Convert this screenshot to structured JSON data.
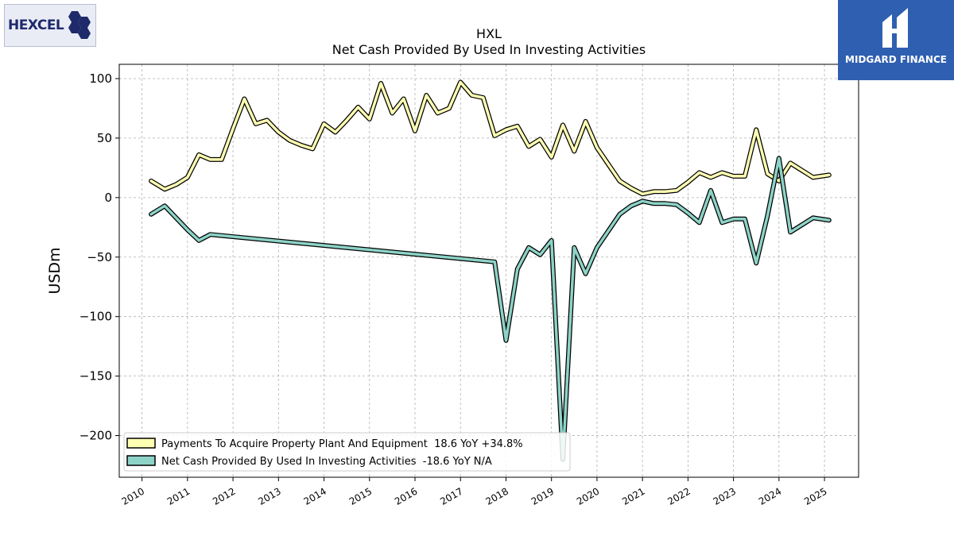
{
  "logos": {
    "left_text": "HEXCEL",
    "right_text": "MIDGARD FINANCE"
  },
  "chart_data": {
    "type": "line",
    "title": "HXL",
    "subtitle": "Net Cash Provided By Used In Investing Activities",
    "xlabel": "",
    "ylabel": "USDm",
    "ylim": [
      -235,
      112
    ],
    "xlim": [
      2009.5,
      2025.75
    ],
    "x_ticks": [
      2010,
      2011,
      2012,
      2013,
      2014,
      2015,
      2016,
      2017,
      2018,
      2019,
      2020,
      2021,
      2022,
      2023,
      2024,
      2025
    ],
    "x_tick_labels": [
      "2010",
      "2011",
      "2012",
      "2013",
      "2014",
      "2015",
      "2016",
      "2017",
      "2018",
      "2019",
      "2020",
      "2021",
      "2022",
      "2023",
      "2024",
      "2025"
    ],
    "y_ticks": [
      100,
      50,
      0,
      -50,
      -100,
      -150,
      -200
    ],
    "y_tick_labels": [
      "100",
      "50",
      "0",
      "−50",
      "−100",
      "−150",
      "−200"
    ],
    "grid": true,
    "legend_position": "bottom-left",
    "series": [
      {
        "name": "Payments To Acquire Property Plant And Equipment  18.6 YoY +34.8%",
        "color": "#ffffb3",
        "points": [
          [
            2010.2,
            14
          ],
          [
            2010.5,
            7
          ],
          [
            2010.75,
            11
          ],
          [
            2011.0,
            17
          ],
          [
            2011.25,
            36
          ],
          [
            2011.5,
            32
          ],
          [
            2011.75,
            32
          ],
          [
            2012.0,
            58
          ],
          [
            2012.25,
            83
          ],
          [
            2012.5,
            62
          ],
          [
            2012.75,
            65
          ],
          [
            2013.0,
            55
          ],
          [
            2013.25,
            48
          ],
          [
            2013.5,
            44
          ],
          [
            2013.75,
            41
          ],
          [
            2014.0,
            62
          ],
          [
            2014.25,
            55
          ],
          [
            2014.5,
            65
          ],
          [
            2014.75,
            76
          ],
          [
            2015.0,
            66
          ],
          [
            2015.25,
            96
          ],
          [
            2015.5,
            71
          ],
          [
            2015.75,
            83
          ],
          [
            2016.0,
            56
          ],
          [
            2016.25,
            86
          ],
          [
            2016.5,
            71
          ],
          [
            2016.75,
            75
          ],
          [
            2017.0,
            97
          ],
          [
            2017.25,
            86
          ],
          [
            2017.5,
            84
          ],
          [
            2017.75,
            52
          ],
          [
            2018.0,
            57
          ],
          [
            2018.25,
            60
          ],
          [
            2018.5,
            43
          ],
          [
            2018.75,
            49
          ],
          [
            2019.0,
            34
          ],
          [
            2019.25,
            61
          ],
          [
            2019.5,
            39
          ],
          [
            2019.75,
            64
          ],
          [
            2020.0,
            42
          ],
          [
            2020.25,
            28
          ],
          [
            2020.5,
            14
          ],
          [
            2020.75,
            8
          ],
          [
            2021.0,
            3
          ],
          [
            2021.25,
            5
          ],
          [
            2021.5,
            5
          ],
          [
            2021.75,
            6
          ],
          [
            2022.0,
            13
          ],
          [
            2022.25,
            21
          ],
          [
            2022.5,
            17
          ],
          [
            2022.75,
            21
          ],
          [
            2023.0,
            18
          ],
          [
            2023.25,
            18
          ],
          [
            2023.5,
            57
          ],
          [
            2023.75,
            20
          ],
          [
            2024.0,
            14
          ],
          [
            2024.25,
            29
          ],
          [
            2024.5,
            23
          ],
          [
            2024.75,
            17
          ],
          [
            2025.1,
            19
          ]
        ]
      },
      {
        "name": "Net Cash Provided By Used In Investing Activities  -18.6 YoY N/A",
        "color": "#8dd3c7",
        "points": [
          [
            2010.2,
            -14
          ],
          [
            2010.5,
            -7
          ],
          [
            2010.75,
            -17
          ],
          [
            2011.0,
            -27
          ],
          [
            2011.25,
            -36
          ],
          [
            2011.5,
            -31
          ],
          [
            2017.75,
            -54
          ],
          [
            2018.0,
            -120
          ],
          [
            2018.25,
            -60
          ],
          [
            2018.5,
            -42
          ],
          [
            2018.75,
            -48
          ],
          [
            2019.0,
            -36
          ],
          [
            2019.25,
            -220
          ],
          [
            2019.5,
            -42
          ],
          [
            2019.75,
            -64
          ],
          [
            2020.0,
            -42
          ],
          [
            2020.25,
            -28
          ],
          [
            2020.5,
            -14
          ],
          [
            2020.75,
            -7
          ],
          [
            2021.0,
            -3
          ],
          [
            2021.25,
            -5
          ],
          [
            2021.5,
            -5
          ],
          [
            2021.75,
            -6
          ],
          [
            2022.0,
            -13
          ],
          [
            2022.25,
            -21
          ],
          [
            2022.5,
            6
          ],
          [
            2022.75,
            -21
          ],
          [
            2023.0,
            -18
          ],
          [
            2023.25,
            -18
          ],
          [
            2023.5,
            -55
          ],
          [
            2023.75,
            -15
          ],
          [
            2024.0,
            33
          ],
          [
            2024.25,
            -29
          ],
          [
            2024.5,
            -23
          ],
          [
            2024.75,
            -17
          ],
          [
            2025.1,
            -19
          ]
        ]
      }
    ]
  }
}
